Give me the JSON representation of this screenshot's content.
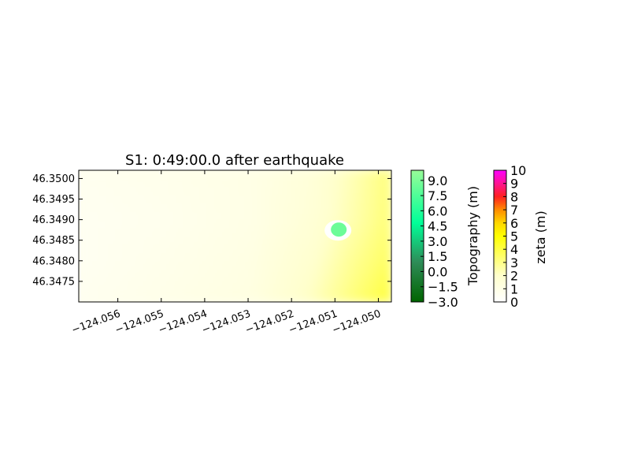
{
  "chart_data": {
    "type": "heatmap",
    "title": "S1: 0:49:00.0 after earthquake",
    "xlabel": "",
    "ylabel": "",
    "xlim": [
      -124.0569,
      -124.0497
    ],
    "ylim": [
      46.347,
      46.3502
    ],
    "x_ticks": [
      -124.056,
      -124.055,
      -124.054,
      -124.053,
      -124.052,
      -124.051,
      -124.05
    ],
    "x_tick_labels": [
      "−124.056",
      "−124.055",
      "−124.054",
      "−124.053",
      "−124.052",
      "−124.051",
      "−124.050"
    ],
    "y_ticks": [
      46.3475,
      46.348,
      46.3485,
      46.349,
      46.3495,
      46.35
    ],
    "y_tick_labels": [
      "46.3475",
      "46.3480",
      "46.3485",
      "46.3490",
      "46.3495",
      "46.3500"
    ],
    "zeta_field": {
      "x": [
        -124.0569,
        -124.0549,
        -124.0529,
        -124.0515,
        -124.0505,
        -124.0497
      ],
      "y": [
        46.347,
        46.348,
        46.349,
        46.3502
      ],
      "values": [
        [
          0.6,
          0.9,
          1.2,
          2.2,
          3.3,
          4.2
        ],
        [
          0.5,
          0.8,
          1.1,
          1.9,
          2.9,
          3.6
        ],
        [
          0.5,
          0.7,
          1.0,
          1.6,
          2.5,
          3.3
        ],
        [
          0.6,
          0.8,
          1.0,
          1.5,
          2.4,
          3.2
        ]
      ]
    },
    "island": {
      "center": [
        -124.05093,
        46.34874
      ],
      "peak_topography_m": 8.5
    },
    "colorbars": [
      {
        "label": "Topography (m)",
        "range": [
          -3.0,
          10.0
        ],
        "ticks": [
          -3.0,
          -1.5,
          0.0,
          1.5,
          3.0,
          4.5,
          6.0,
          7.5,
          9.0
        ],
        "tick_labels": [
          "−3.0",
          "−1.5",
          "0.0",
          "1.5",
          "3.0",
          "4.5",
          "6.0",
          "7.5",
          "9.0"
        ],
        "colors": [
          "#006400",
          "#00ff99",
          "#98fb98"
        ]
      },
      {
        "label": "zeta (m)",
        "range": [
          0,
          10
        ],
        "ticks": [
          0,
          1,
          2,
          3,
          4,
          5,
          6,
          7,
          8,
          9,
          10
        ],
        "tick_labels": [
          "0",
          "1",
          "2",
          "3",
          "4",
          "5",
          "6",
          "7",
          "8",
          "9",
          "10"
        ],
        "colors": [
          "#ffffff",
          "#ffff00",
          "#ff4500",
          "#ff00ff"
        ]
      }
    ]
  }
}
